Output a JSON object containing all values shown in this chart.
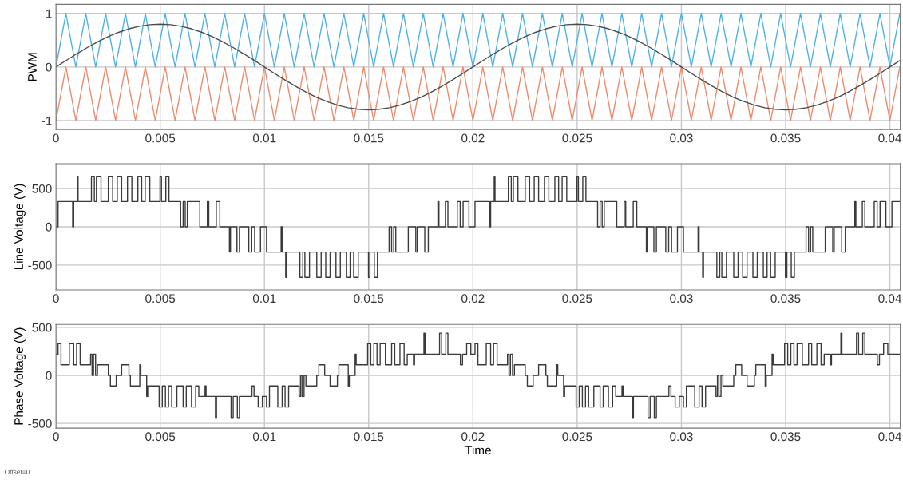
{
  "chart_data": [
    {
      "type": "line",
      "ylabel": "PWM",
      "xlim": [
        0,
        0.0405
      ],
      "ylim": [
        -1.17,
        1.17
      ],
      "xticks": [
        0,
        0.005,
        0.01,
        0.015,
        0.02,
        0.025,
        0.03,
        0.035,
        0.04
      ],
      "yticks": [
        -1,
        0,
        1
      ],
      "grid": true,
      "series": [
        {
          "color": "#4db3e6",
          "x": [
            0,
            0.000476,
            0.000952,
            0.001429,
            0.001905,
            0.002381,
            0.002857,
            0.003333,
            0.00381,
            0.004286,
            0.004762,
            0.005238,
            0.005714,
            0.00619,
            0.006667,
            0.007143,
            0.007619,
            0.008095,
            0.008571,
            0.009048,
            0.009524,
            0.01,
            0.010476,
            0.010952,
            0.011429,
            0.011905,
            0.012381,
            0.012857,
            0.013333,
            0.01381,
            0.014286,
            0.014762,
            0.015238,
            0.015714,
            0.01619,
            0.016667,
            0.017143,
            0.017619,
            0.018095,
            0.018571,
            0.019048,
            0.019524,
            0.02,
            0.020476,
            0.020952,
            0.021429,
            0.021905,
            0.022381,
            0.022857,
            0.023333,
            0.02381,
            0.024286,
            0.024762,
            0.025238,
            0.025714,
            0.02619,
            0.026667,
            0.027143,
            0.027619,
            0.028095,
            0.028571,
            0.029048,
            0.029524,
            0.03,
            0.030476,
            0.030952,
            0.031429,
            0.031905,
            0.032381,
            0.032857,
            0.033333,
            0.03381,
            0.034286,
            0.034762,
            0.035238,
            0.035714,
            0.03619,
            0.036667,
            0.037143,
            0.037619,
            0.038095,
            0.038571,
            0.039048,
            0.039524,
            0.04,
            0.040476
          ],
          "values": [
            0,
            1,
            0,
            1,
            0,
            1,
            0,
            1,
            0,
            1,
            0,
            1,
            0,
            1,
            0,
            1,
            0,
            1,
            0,
            1,
            0,
            1,
            0,
            1,
            0,
            1,
            0,
            1,
            0,
            1,
            0,
            1,
            0,
            1,
            0,
            1,
            0,
            1,
            0,
            1,
            0,
            1,
            0,
            1,
            0,
            1,
            0,
            1,
            0,
            1,
            0,
            1,
            0,
            1,
            0,
            1,
            0,
            1,
            0,
            1,
            0,
            1,
            0,
            1,
            0,
            1,
            0,
            1,
            0,
            1,
            0,
            1,
            0,
            1,
            0,
            1,
            0,
            1,
            0,
            1,
            0,
            1,
            0,
            1,
            0,
            1
          ]
        },
        {
          "color": "#f08a6c",
          "x": [
            0,
            0.000476,
            0.000952,
            0.001429,
            0.001905,
            0.002381,
            0.002857,
            0.003333,
            0.00381,
            0.004286,
            0.004762,
            0.005238,
            0.005714,
            0.00619,
            0.006667,
            0.007143,
            0.007619,
            0.008095,
            0.008571,
            0.009048,
            0.009524,
            0.01,
            0.010476,
            0.010952,
            0.011429,
            0.011905,
            0.012381,
            0.012857,
            0.013333,
            0.01381,
            0.014286,
            0.014762,
            0.015238,
            0.015714,
            0.01619,
            0.016667,
            0.017143,
            0.017619,
            0.018095,
            0.018571,
            0.019048,
            0.019524,
            0.02,
            0.020476,
            0.020952,
            0.021429,
            0.021905,
            0.022381,
            0.022857,
            0.023333,
            0.02381,
            0.024286,
            0.024762,
            0.025238,
            0.025714,
            0.02619,
            0.026667,
            0.027143,
            0.027619,
            0.028095,
            0.028571,
            0.029048,
            0.029524,
            0.03,
            0.030476,
            0.030952,
            0.031429,
            0.031905,
            0.032381,
            0.032857,
            0.033333,
            0.03381,
            0.034286,
            0.034762,
            0.035238,
            0.035714,
            0.03619,
            0.036667,
            0.037143,
            0.037619,
            0.038095,
            0.038571,
            0.039048,
            0.039524,
            0.04,
            0.040476
          ],
          "values": [
            -1,
            0,
            -1,
            0,
            -1,
            0,
            -1,
            0,
            -1,
            0,
            -1,
            0,
            -1,
            0,
            -1,
            0,
            -1,
            0,
            -1,
            0,
            -1,
            0,
            -1,
            0,
            -1,
            0,
            -1,
            0,
            -1,
            0,
            -1,
            0,
            -1,
            0,
            -1,
            0,
            -1,
            0,
            -1,
            0,
            -1,
            0,
            -1,
            0,
            -1,
            0,
            -1,
            0,
            -1,
            0,
            -1,
            0,
            -1,
            0,
            -1,
            0,
            -1,
            0,
            -1,
            0,
            -1,
            0,
            -1,
            0,
            -1,
            0,
            -1,
            0,
            -1,
            0,
            -1,
            0,
            -1,
            0,
            -1,
            0,
            -1,
            0,
            -1,
            0,
            -1,
            0,
            -1,
            0,
            -1,
            0
          ]
        },
        {
          "color": "#4a4a4a",
          "x": [
            0,
            0.0005,
            0.001,
            0.0015,
            0.002,
            0.0025,
            0.003,
            0.0035,
            0.004,
            0.0045,
            0.005,
            0.0055,
            0.006,
            0.0065,
            0.007,
            0.0075,
            0.008,
            0.0085,
            0.009,
            0.0095,
            0.01,
            0.0105,
            0.011,
            0.0115,
            0.012,
            0.0125,
            0.013,
            0.0135,
            0.014,
            0.0145,
            0.015,
            0.0155,
            0.016,
            0.0165,
            0.017,
            0.0175,
            0.018,
            0.0185,
            0.019,
            0.0195,
            0.02,
            0.0205,
            0.021,
            0.0215,
            0.022,
            0.0225,
            0.023,
            0.0235,
            0.024,
            0.0245,
            0.025,
            0.0255,
            0.026,
            0.0265,
            0.027,
            0.0275,
            0.028,
            0.0285,
            0.029,
            0.0295,
            0.03,
            0.0305,
            0.031,
            0.0315,
            0.032,
            0.0325,
            0.033,
            0.0335,
            0.034,
            0.0345,
            0.035,
            0.0355,
            0.036,
            0.0365,
            0.037,
            0.0375,
            0.038,
            0.0385,
            0.039,
            0.0395,
            0.04,
            0.0405
          ],
          "values": [
            0,
            0.125,
            0.247,
            0.363,
            0.47,
            0.566,
            0.647,
            0.713,
            0.761,
            0.79,
            0.8,
            0.79,
            0.761,
            0.713,
            0.647,
            0.566,
            0.47,
            0.363,
            0.247,
            0.125,
            0,
            -0.125,
            -0.247,
            -0.363,
            -0.47,
            -0.566,
            -0.647,
            -0.713,
            -0.761,
            -0.79,
            -0.8,
            -0.79,
            -0.761,
            -0.713,
            -0.647,
            -0.566,
            -0.47,
            -0.363,
            -0.247,
            -0.125,
            0,
            0.125,
            0.247,
            0.363,
            0.47,
            0.566,
            0.647,
            0.713,
            0.761,
            0.79,
            0.8,
            0.79,
            0.761,
            0.713,
            0.647,
            0.566,
            0.47,
            0.363,
            0.247,
            0.125,
            0,
            -0.125,
            -0.247,
            -0.363,
            -0.47,
            -0.566,
            -0.647,
            -0.713,
            -0.761,
            -0.79,
            -0.8,
            -0.79,
            -0.761,
            -0.713,
            -0.647,
            -0.566,
            -0.47,
            -0.363,
            -0.247,
            -0.125,
            0,
            0.125
          ]
        }
      ]
    },
    {
      "type": "step",
      "ylabel": "Line Voltage (V)",
      "xlim": [
        0,
        0.0405
      ],
      "ylim": [
        -825,
        825
      ],
      "xticks": [
        0,
        0.005,
        0.01,
        0.015,
        0.02,
        0.025,
        0.03,
        0.035,
        0.04
      ],
      "yticks": [
        -500,
        0,
        500
      ],
      "grid": true,
      "series": [
        {
          "color": "#3a3a3a",
          "x": [
            0,
            0.0001,
            0.0008,
            0.00085,
            0.00102,
            0.00106,
            0.0017,
            0.00184,
            0.00194,
            0.00216,
            0.00251,
            0.00272,
            0.00294,
            0.00315,
            0.00343,
            0.00364,
            0.00393,
            0.00411,
            0.00428,
            0.0045,
            0.00499,
            0.00506,
            0.00527,
            0.00542,
            0.00598,
            0.0061,
            0.0062,
            0.0063,
            0.0069,
            0.00726,
            0.00733,
            0.00769,
            0.00786,
            0.00832,
            0.00837,
            0.00868,
            0.0088,
            0.00925,
            0.00939,
            0.00953,
            0.00981,
            0.01,
            0.0101,
            0.0108,
            0.01085,
            0.01102,
            0.01106,
            0.0117,
            0.01184,
            0.01194,
            0.01216,
            0.01251,
            0.01272,
            0.01294,
            0.01315,
            0.01343,
            0.01364,
            0.01393,
            0.01411,
            0.01428,
            0.0145,
            0.01499,
            0.01506,
            0.01527,
            0.01542,
            0.01598,
            0.0161,
            0.0162,
            0.0163,
            0.0169,
            0.01726,
            0.01733,
            0.01769,
            0.01786,
            0.01832,
            0.01837,
            0.01868,
            0.0188,
            0.01925,
            0.01939,
            0.01953,
            0.01981,
            0.02,
            0.0201,
            0.0208,
            0.02085,
            0.02102,
            0.02106,
            0.0217,
            0.02184,
            0.02194,
            0.02216,
            0.02251,
            0.02272,
            0.02294,
            0.02315,
            0.02343,
            0.02364,
            0.02393,
            0.02411,
            0.02428,
            0.0245,
            0.02499,
            0.02506,
            0.02527,
            0.02542,
            0.02598,
            0.0261,
            0.0262,
            0.0263,
            0.0269,
            0.02726,
            0.02733,
            0.02769,
            0.02786,
            0.02832,
            0.02837,
            0.02868,
            0.0288,
            0.02925,
            0.02939,
            0.02953,
            0.02981,
            0.03,
            0.0301,
            0.0308,
            0.03085,
            0.03102,
            0.03106,
            0.0317,
            0.03184,
            0.03194,
            0.03216,
            0.03251,
            0.03272,
            0.03294,
            0.03315,
            0.03343,
            0.03364,
            0.03393,
            0.03411,
            0.03428,
            0.0345,
            0.03499,
            0.03506,
            0.03527,
            0.03542,
            0.03598,
            0.0361,
            0.0362,
            0.0363,
            0.0369,
            0.03726,
            0.03733,
            0.03769,
            0.03786,
            0.03832,
            0.03837,
            0.03868,
            0.0388,
            0.03925,
            0.03939,
            0.03953,
            0.03981,
            0.04,
            0.0401,
            0.0405
          ],
          "values": [
            0,
            330,
            0,
            330,
            660,
            330,
            660,
            330,
            660,
            330,
            660,
            330,
            660,
            330,
            660,
            330,
            660,
            330,
            660,
            330,
            660,
            330,
            660,
            330,
            0,
            330,
            0,
            330,
            0,
            330,
            0,
            330,
            0,
            -330,
            0,
            -330,
            0,
            -330,
            0,
            -330,
            0,
            0,
            -330,
            0,
            -330,
            -660,
            -330,
            -660,
            -330,
            -660,
            -330,
            -660,
            -330,
            -660,
            -330,
            -660,
            -330,
            -660,
            -330,
            -660,
            -330,
            -660,
            -330,
            -660,
            -330,
            0,
            -330,
            0,
            -330,
            0,
            -330,
            0,
            -330,
            0,
            330,
            0,
            330,
            0,
            330,
            0,
            330,
            0,
            0,
            330,
            0,
            330,
            660,
            330,
            660,
            330,
            660,
            330,
            660,
            330,
            660,
            330,
            660,
            330,
            660,
            330,
            660,
            330,
            660,
            330,
            660,
            330,
            0,
            330,
            0,
            330,
            0,
            330,
            0,
            330,
            0,
            -330,
            0,
            -330,
            0,
            -330,
            0,
            -330,
            0,
            0,
            -330,
            0,
            -330,
            -660,
            -330,
            -660,
            -330,
            -660,
            -330,
            -660,
            -330,
            -660,
            -330,
            -660,
            -330,
            -660,
            -330,
            -660,
            -330,
            -660,
            -330,
            -660,
            -330,
            0,
            -330,
            0,
            -330,
            0,
            -330,
            0,
            -330,
            0,
            330,
            0,
            330,
            0,
            330,
            0,
            330,
            0,
            0,
            330,
            330
          ]
        }
      ]
    },
    {
      "type": "step",
      "ylabel": "Phase Voltage (V)",
      "xlabel": "Time",
      "annotations": [
        "Offset=0"
      ],
      "xlim": [
        0,
        0.0405
      ],
      "ylim": [
        -550,
        530
      ],
      "xticks": [
        0,
        0.005,
        0.01,
        0.015,
        0.02,
        0.025,
        0.03,
        0.035,
        0.04
      ],
      "yticks": [
        -500,
        0,
        500
      ],
      "grid": true,
      "series": [
        {
          "color": "#3a3a3a",
          "x": [
            0,
            0.0001,
            0.00024,
            0.00064,
            0.00085,
            0.00099,
            0.00116,
            0.00166,
            0.00173,
            0.0018,
            0.0019,
            0.00199,
            0.00251,
            0.00261,
            0.00289,
            0.00315,
            0.0035,
            0.00357,
            0.00402,
            0.00407,
            0.00435,
            0.0044,
            0.00495,
            0.0051,
            0.00525,
            0.0054,
            0.00555,
            0.0058,
            0.0061,
            0.00625,
            0.0065,
            0.0067,
            0.00685,
            0.00715,
            0.0072,
            0.00765,
            0.0077,
            0.0084,
            0.0085,
            0.0087,
            0.0088,
            0.0094,
            0.0095,
            0.0097,
            0.0099,
            0.01,
            0.0101,
            0.01024,
            0.01064,
            0.01085,
            0.01099,
            0.01116,
            0.01166,
            0.01173,
            0.0118,
            0.0119,
            0.01199,
            0.01251,
            0.01261,
            0.01289,
            0.01315,
            0.0135,
            0.01357,
            0.01402,
            0.01407,
            0.01435,
            0.0144,
            0.01495,
            0.0151,
            0.01525,
            0.0154,
            0.01555,
            0.0158,
            0.0161,
            0.01625,
            0.0165,
            0.0167,
            0.01685,
            0.01715,
            0.0172,
            0.01765,
            0.0177,
            0.0184,
            0.0185,
            0.0187,
            0.0188,
            0.0194,
            0.0195,
            0.0197,
            0.0199,
            0.02,
            0.0201,
            0.02024,
            0.02064,
            0.02085,
            0.02099,
            0.02116,
            0.02166,
            0.02173,
            0.0218,
            0.0219,
            0.02199,
            0.02251,
            0.02261,
            0.02289,
            0.02315,
            0.0235,
            0.02357,
            0.02402,
            0.02407,
            0.02435,
            0.0244,
            0.02495,
            0.0251,
            0.02525,
            0.0254,
            0.02555,
            0.0258,
            0.0261,
            0.02625,
            0.0265,
            0.0267,
            0.02685,
            0.02715,
            0.0272,
            0.02765,
            0.0277,
            0.0284,
            0.0285,
            0.0287,
            0.0288,
            0.0294,
            0.0295,
            0.0297,
            0.0299,
            0.03,
            0.0301,
            0.03024,
            0.03064,
            0.03085,
            0.03099,
            0.03116,
            0.03166,
            0.03173,
            0.0318,
            0.0319,
            0.03199,
            0.03251,
            0.03261,
            0.03289,
            0.03315,
            0.0335,
            0.03357,
            0.03402,
            0.03407,
            0.03435,
            0.0344,
            0.03495,
            0.0351,
            0.03525,
            0.0354,
            0.03555,
            0.0358,
            0.0361,
            0.03625,
            0.0365,
            0.0367,
            0.03685,
            0.03715,
            0.0372,
            0.03765,
            0.0377,
            0.0384,
            0.0385,
            0.0387,
            0.0388,
            0.0394,
            0.0395,
            0.0397,
            0.0399,
            0.04,
            0.0405
          ],
          "values": [
            220,
            330,
            110,
            330,
            110,
            330,
            110,
            220,
            0,
            220,
            0,
            110,
            0,
            -110,
            0,
            110,
            0,
            -110,
            110,
            0,
            -220,
            -110,
            -330,
            -110,
            -330,
            -110,
            -330,
            -110,
            -330,
            -110,
            -330,
            -110,
            -220,
            -110,
            -220,
            -440,
            -220,
            -440,
            -220,
            -440,
            -220,
            -110,
            -220,
            -330,
            -220,
            -220,
            -330,
            -110,
            -330,
            -110,
            -330,
            -110,
            -220,
            0,
            -220,
            0,
            -110,
            0,
            110,
            0,
            -110,
            0,
            110,
            -110,
            0,
            220,
            110,
            330,
            110,
            330,
            110,
            330,
            110,
            330,
            110,
            330,
            110,
            220,
            110,
            220,
            440,
            220,
            440,
            220,
            440,
            220,
            110,
            220,
            330,
            220,
            220,
            330,
            110,
            330,
            110,
            330,
            110,
            220,
            0,
            220,
            0,
            110,
            0,
            -110,
            0,
            110,
            0,
            -110,
            110,
            0,
            -220,
            -110,
            -330,
            -110,
            -330,
            -110,
            -330,
            -110,
            -330,
            -110,
            -330,
            -110,
            -220,
            -110,
            -220,
            -440,
            -220,
            -440,
            -220,
            -440,
            -220,
            -110,
            -220,
            -330,
            -220,
            -220,
            -330,
            -110,
            -330,
            -110,
            -330,
            -110,
            -220,
            0,
            -220,
            0,
            -110,
            0,
            110,
            0,
            -110,
            0,
            110,
            -110,
            0,
            220,
            110,
            330,
            110,
            330,
            110,
            330,
            110,
            330,
            110,
            330,
            110,
            220,
            110,
            220,
            440,
            220,
            440,
            220,
            440,
            220,
            110,
            220,
            330,
            220,
            220,
            220
          ]
        }
      ]
    }
  ]
}
